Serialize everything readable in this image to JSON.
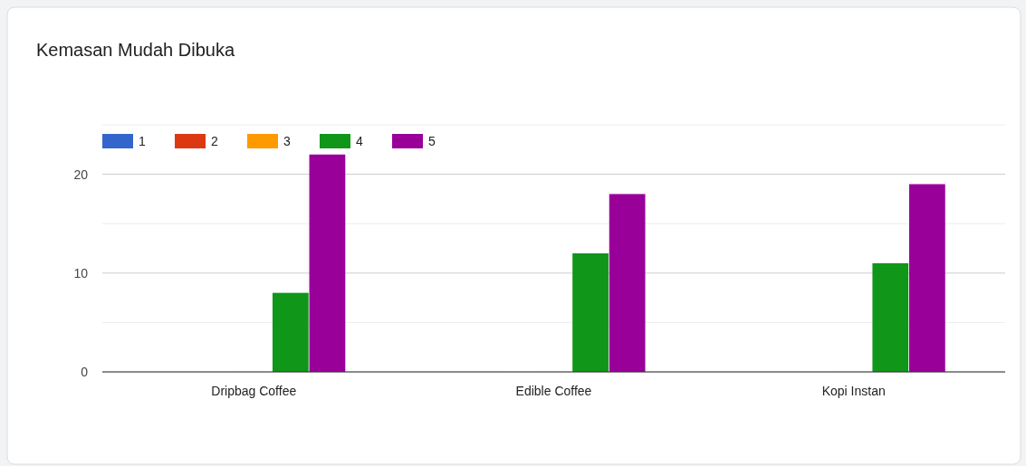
{
  "chart_data": {
    "type": "bar",
    "title": "Kemasan Mudah Dibuka",
    "categories": [
      "Dripbag Coffee",
      "Edible Coffee",
      "Kopi Instan"
    ],
    "series": [
      {
        "name": "1",
        "color": "#3366cc",
        "values": [
          0,
          0,
          0
        ]
      },
      {
        "name": "2",
        "color": "#dc3912",
        "values": [
          0,
          0,
          0
        ]
      },
      {
        "name": "3",
        "color": "#ff9900",
        "values": [
          0,
          0,
          0
        ]
      },
      {
        "name": "4",
        "color": "#109618",
        "values": [
          8,
          12,
          11
        ]
      },
      {
        "name": "5",
        "color": "#990099",
        "values": [
          22,
          18,
          19
        ]
      }
    ],
    "ylim": [
      0,
      25
    ],
    "yticks": [
      0,
      {
        "value": 5,
        "label": null
      },
      10,
      {
        "value": 15,
        "label": null
      },
      20,
      {
        "value": 25,
        "label": null
      }
    ],
    "grid": "y",
    "legend": "top left"
  }
}
